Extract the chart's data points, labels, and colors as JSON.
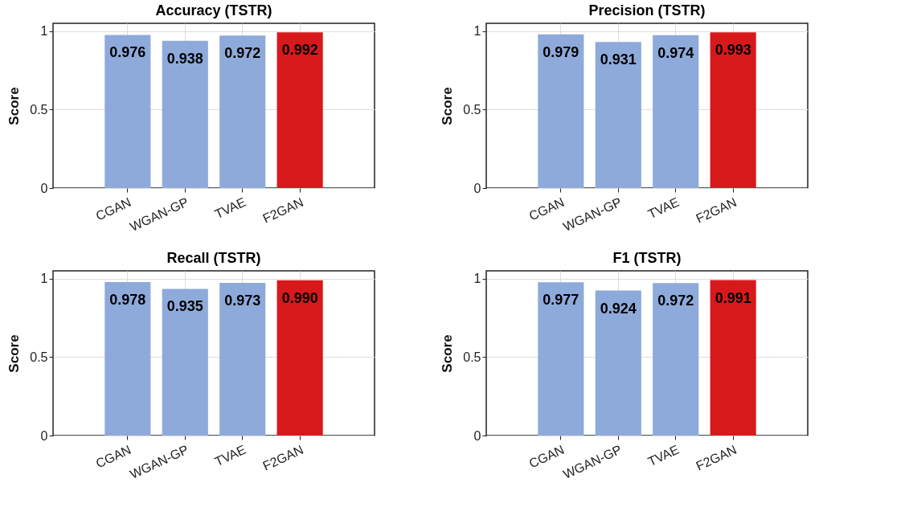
{
  "chart_data": [
    {
      "type": "bar",
      "title": "Accuracy (TSTR)",
      "ylabel": "Score",
      "categories": [
        "CGAN",
        "WGAN-GP",
        "TVAE",
        "F2GAN"
      ],
      "values": [
        0.976,
        0.938,
        0.972,
        0.992
      ],
      "value_labels": [
        "0.976",
        "0.938",
        "0.972",
        "0.992"
      ],
      "colors": [
        "#8eaadb",
        "#8eaadb",
        "#8eaadb",
        "#d7191c"
      ],
      "ylim": [
        0,
        1.05
      ],
      "yticks": [
        0,
        0.5,
        1
      ],
      "grid": true
    },
    {
      "type": "bar",
      "title": "Precision (TSTR)",
      "ylabel": "Score",
      "categories": [
        "CGAN",
        "WGAN-GP",
        "TVAE",
        "F2GAN"
      ],
      "values": [
        0.979,
        0.931,
        0.974,
        0.993
      ],
      "value_labels": [
        "0.979",
        "0.931",
        "0.974",
        "0.993"
      ],
      "colors": [
        "#8eaadb",
        "#8eaadb",
        "#8eaadb",
        "#d7191c"
      ],
      "ylim": [
        0,
        1.05
      ],
      "yticks": [
        0,
        0.5,
        1
      ],
      "grid": true
    },
    {
      "type": "bar",
      "title": "Recall (TSTR)",
      "ylabel": "Score",
      "categories": [
        "CGAN",
        "WGAN-GP",
        "TVAE",
        "F2GAN"
      ],
      "values": [
        0.978,
        0.935,
        0.973,
        0.99
      ],
      "value_labels": [
        "0.978",
        "0.935",
        "0.973",
        "0.990"
      ],
      "colors": [
        "#8eaadb",
        "#8eaadb",
        "#8eaadb",
        "#d7191c"
      ],
      "ylim": [
        0,
        1.05
      ],
      "yticks": [
        0,
        0.5,
        1
      ],
      "grid": true
    },
    {
      "type": "bar",
      "title": "F1 (TSTR)",
      "ylabel": "Score",
      "categories": [
        "CGAN",
        "WGAN-GP",
        "TVAE",
        "F2GAN"
      ],
      "values": [
        0.977,
        0.924,
        0.972,
        0.991
      ],
      "value_labels": [
        "0.977",
        "0.924",
        "0.972",
        "0.991"
      ],
      "colors": [
        "#8eaadb",
        "#8eaadb",
        "#8eaadb",
        "#d7191c"
      ],
      "ylim": [
        0,
        1.05
      ],
      "yticks": [
        0,
        0.5,
        1
      ],
      "grid": true
    }
  ]
}
